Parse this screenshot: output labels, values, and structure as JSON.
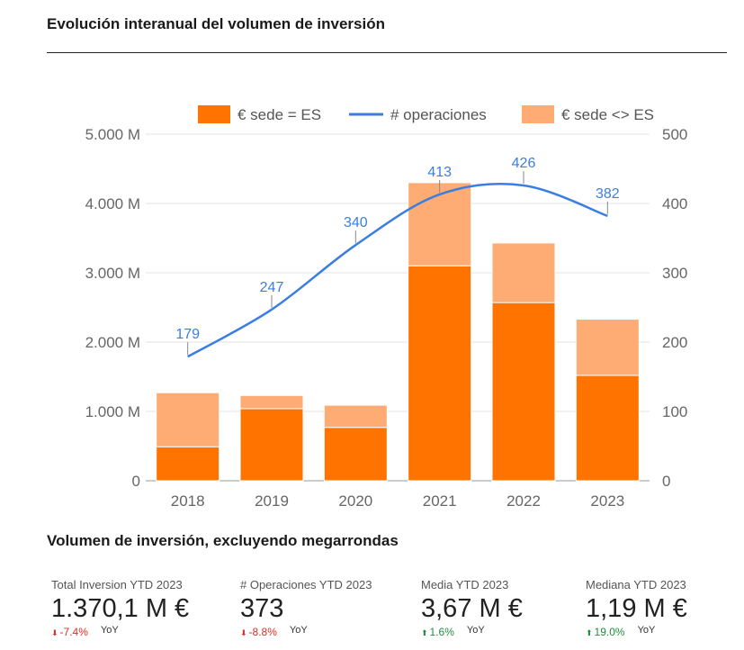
{
  "page": {
    "title": "Evolución interanual del volumen de inversión",
    "subtitle": "Volumen de inversión, excluyendo megarrondas"
  },
  "chart_data": {
    "type": "bar",
    "stacked": true,
    "categories": [
      "2018",
      "2019",
      "2020",
      "2021",
      "2022",
      "2023"
    ],
    "series": [
      {
        "name": "€ sede = ES",
        "kind": "bar",
        "axis": "left",
        "color": "#ff7300",
        "values": [
          490,
          1040,
          770,
          3100,
          2570,
          1520
        ]
      },
      {
        "name": "€ sede <> ES",
        "kind": "bar",
        "axis": "left",
        "color": "#ffab74",
        "values": [
          780,
          190,
          320,
          1200,
          860,
          810
        ]
      },
      {
        "name": "# operaciones",
        "kind": "line",
        "axis": "right",
        "color": "#3a7fe0",
        "values": [
          179,
          247,
          340,
          413,
          426,
          382
        ],
        "labels": [
          "179",
          "247",
          "340",
          "413",
          "426",
          "382"
        ]
      }
    ],
    "legend_order": [
      "€ sede = ES",
      "# operaciones",
      "€ sede <> ES"
    ],
    "legend_placement": "top",
    "y_left": {
      "range": [
        0,
        5000
      ],
      "ticks": [
        0,
        1000,
        2000,
        3000,
        4000,
        5000
      ],
      "tick_labels": [
        "0",
        "1.000 M",
        "2.000 M",
        "3.000 M",
        "4.000 M",
        "5.000 M"
      ]
    },
    "y_right": {
      "range": [
        0,
        500
      ],
      "ticks": [
        0,
        100,
        200,
        300,
        400,
        500
      ],
      "tick_labels": [
        "0",
        "100",
        "200",
        "300",
        "400",
        "500"
      ]
    },
    "grid": true
  },
  "kpis": [
    {
      "label": "Total Inversion YTD 2023",
      "value": "1.370,1 M €",
      "change": "-7.4%",
      "direction": "down",
      "yoy": "YoY"
    },
    {
      "label": "# Operaciones YTD 2023",
      "value": "373",
      "change": "-8.8%",
      "direction": "down",
      "yoy": "YoY"
    },
    {
      "label": "Media YTD 2023",
      "value": "3,67 M €",
      "change": "1.6%",
      "direction": "up",
      "yoy": "YoY"
    },
    {
      "label": "Mediana YTD 2023",
      "value": "1,19 M €",
      "change": "19.0%",
      "direction": "up",
      "yoy": "YoY"
    }
  ]
}
